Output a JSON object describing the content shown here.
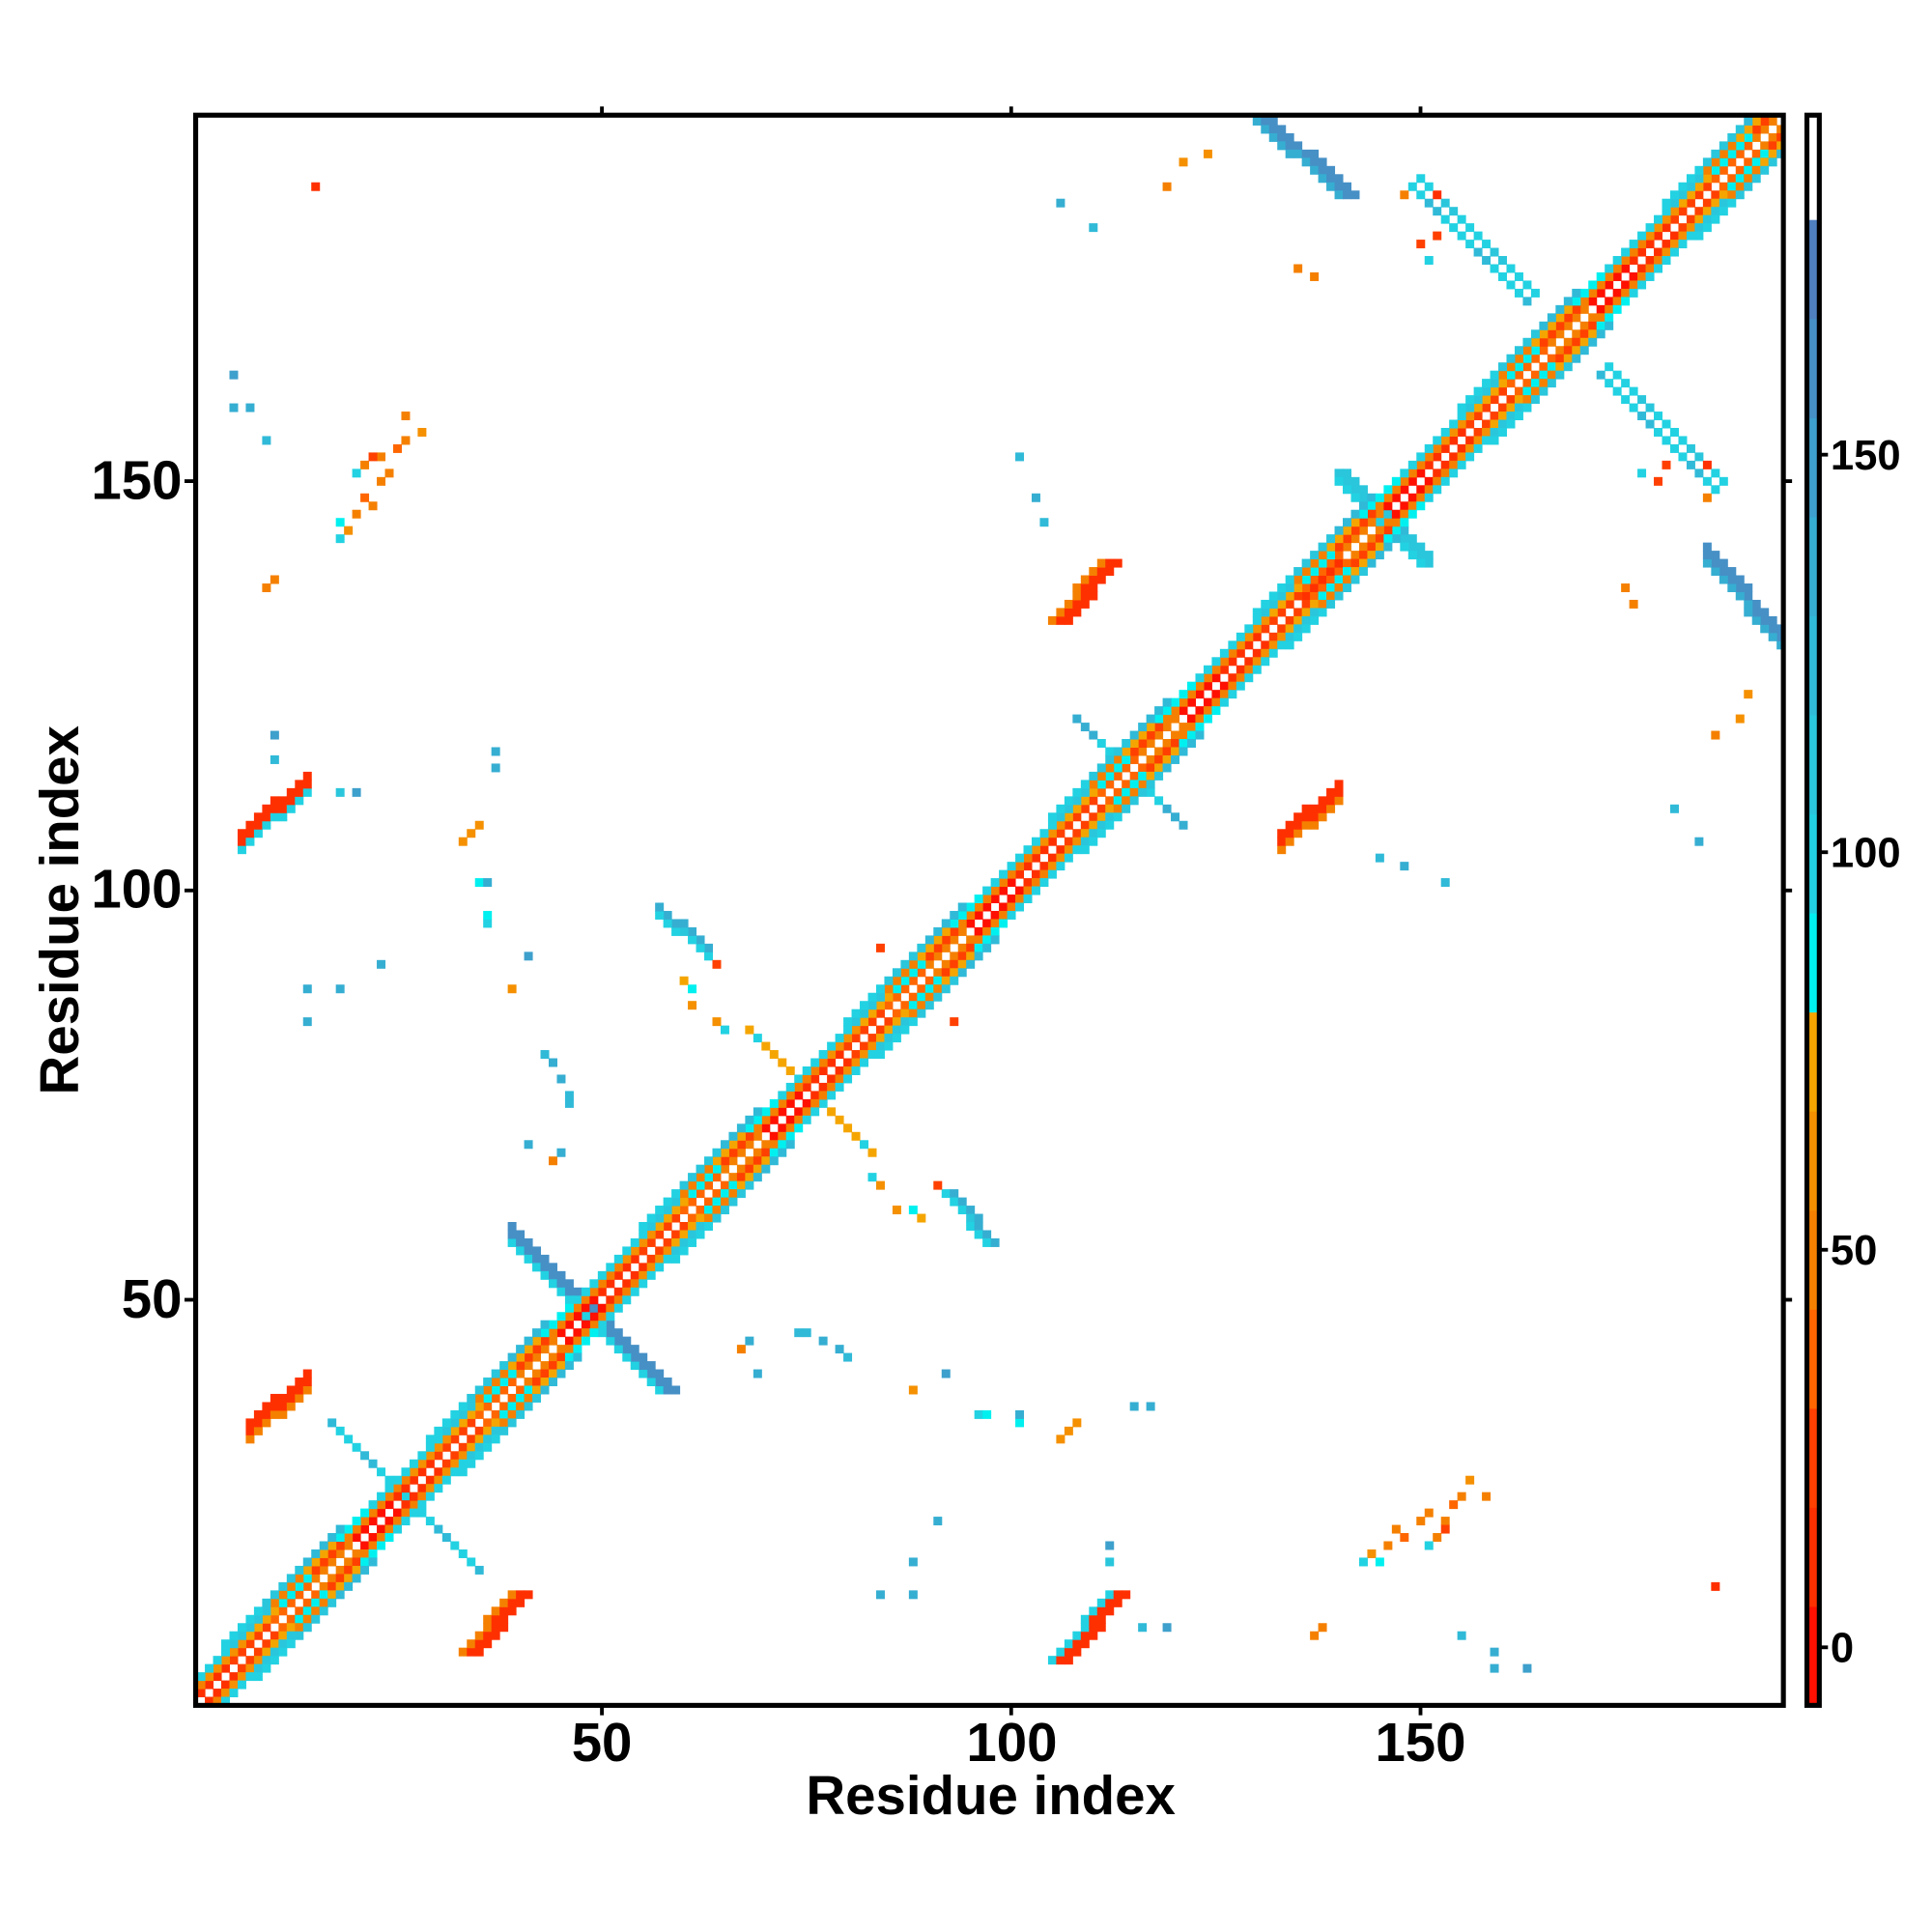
{
  "chart_data": {
    "type": "heatmap",
    "title": "",
    "xlabel": "Residue index",
    "ylabel": "Residue index",
    "n_residues": 194,
    "xlim": [
      1,
      194
    ],
    "ylim": [
      1,
      194
    ],
    "x_ticks": [
      "50",
      "100",
      "150"
    ],
    "y_ticks": [
      "50",
      "100",
      "150"
    ],
    "x_tick_values": [
      50,
      100,
      150
    ],
    "y_tick_values": [
      50,
      100,
      150
    ],
    "symmetric": true,
    "colorbar": {
      "range": [
        -7.3,
        192.7
      ],
      "ticks": [
        "0",
        "50",
        "100",
        "150"
      ],
      "tick_values": [
        0,
        50,
        100,
        150
      ],
      "band_width": 12.46,
      "colors": [
        "#ff1000",
        "#ff3000",
        "#ff4000",
        "#ff6600",
        "#f58000",
        "#f59000",
        "#f5a500",
        "#00f0f0",
        "#22d2e2",
        "#2ac6dc",
        "#30bad8",
        "#36aed2",
        "#3ea0cc",
        "#4690c6",
        "#4f80c0",
        "#ffffff"
      ]
    },
    "diagonal_bands": [
      {
        "offset": 1,
        "values": [
          5,
          15,
          20,
          35,
          45
        ]
      },
      {
        "offset": 2,
        "values": [
          30,
          45,
          55,
          60,
          75,
          90
        ]
      },
      {
        "offset": 3,
        "values": [
          50,
          70,
          85,
          95,
          100,
          115
        ]
      },
      {
        "offset": 4,
        "values": [
          95,
          110,
          125,
          null,
          null
        ]
      }
    ],
    "segments": [
      {
        "from": [
          33,
          7
        ],
        "to": [
          39,
          14
        ],
        "thickness": 3,
        "value": 15,
        "edge_value": 45
      },
      {
        "from": [
          105,
          6
        ],
        "to": [
          112,
          14
        ],
        "thickness": 3,
        "value": 10,
        "edge_value": 95
      },
      {
        "from": [
          39,
          57
        ],
        "to": [
          57,
          39
        ],
        "thickness": 3,
        "value": 160,
        "edge_value": 100
      },
      {
        "from": [
          92,
          63
        ],
        "to": [
          97,
          57
        ],
        "thickness": 2,
        "value": 130,
        "edge_value": 95
      },
      {
        "from": [
          130,
          194
        ],
        "to": [
          140,
          185
        ],
        "thickness": 3,
        "value": 165,
        "edge_value": 130
      },
      {
        "from": [
          105,
          133
        ],
        "to": [
          111,
          140
        ],
        "thickness": 3,
        "value": 10,
        "edge_value": 45
      },
      {
        "from": [
          136,
          136
        ],
        "to": [
          140,
          140
        ],
        "thickness": 2,
        "value": 5,
        "edge_value": 10
      },
      {
        "from": [
          149,
          186
        ],
        "to": [
          163,
          172
        ],
        "thickness": 1,
        "value": 100,
        "edge_value": 120
      },
      {
        "from": [
          173,
          164
        ],
        "to": [
          187,
          150
        ],
        "thickness": 1,
        "value": 95,
        "edge_value": 110
      },
      {
        "from": [
          140,
          151
        ],
        "to": [
          150,
          140
        ],
        "thickness": 2,
        "value": 110,
        "edge_value": 95
      },
      {
        "from": [
          108,
          121
        ],
        "to": [
          120,
          109
        ],
        "thickness": 1,
        "value": 100,
        "edge_value": 130
      },
      {
        "from": [
          68,
          83
        ],
        "to": [
          82,
          69
        ],
        "thickness": 1,
        "value": 70,
        "edge_value": 95
      },
      {
        "from": [
          17,
          35
        ],
        "to": [
          35,
          17
        ],
        "thickness": 1,
        "value": 95,
        "edge_value": 120
      }
    ],
    "points": [
      [
        144,
        19,
        60
      ],
      [
        146,
        20,
        55
      ],
      [
        147,
        22,
        45
      ],
      [
        148,
        21,
        40
      ],
      [
        150,
        23,
        45
      ],
      [
        151,
        24,
        45
      ],
      [
        152,
        21,
        50
      ],
      [
        153,
        23,
        50
      ],
      [
        154,
        25,
        40
      ],
      [
        155,
        26,
        45
      ],
      [
        156,
        28,
        65
      ],
      [
        158,
        26,
        45
      ],
      [
        151,
        20,
        95
      ],
      [
        145,
        18,
        90
      ],
      [
        153,
        22,
        20
      ],
      [
        143,
        18,
        95
      ],
      [
        84,
        14,
        130
      ],
      [
        88,
        14,
        130
      ],
      [
        91,
        23,
        130
      ],
      [
        88,
        18,
        140
      ],
      [
        112,
        20,
        150
      ],
      [
        112,
        18,
        110
      ],
      [
        116,
        10,
        125
      ],
      [
        119,
        10,
        150
      ],
      [
        155,
        9,
        115
      ],
      [
        159,
        7,
        135
      ],
      [
        159,
        5,
        130
      ],
      [
        163,
        5,
        150
      ],
      [
        137,
        9,
        50
      ],
      [
        138,
        10,
        50
      ],
      [
        115,
        37,
        140
      ],
      [
        117,
        37,
        140
      ],
      [
        106,
        33,
        60
      ],
      [
        107,
        34,
        60
      ],
      [
        108,
        35,
        60
      ],
      [
        96,
        36,
        95
      ],
      [
        97,
        36,
        85
      ],
      [
        67,
        44,
        55
      ],
      [
        75,
        46,
        120
      ],
      [
        77,
        45,
        130
      ],
      [
        79,
        44,
        140
      ],
      [
        80,
        43,
        120
      ],
      [
        83,
        65,
        95
      ],
      [
        84,
        64,
        60
      ],
      [
        86,
        61,
        60
      ],
      [
        88,
        61,
        90
      ],
      [
        89,
        60,
        70
      ],
      [
        91,
        64,
        20
      ],
      [
        95,
        60,
        110
      ],
      [
        93,
        84,
        20
      ],
      [
        41,
        69,
        130
      ],
      [
        45,
        68,
        140
      ],
      [
        46,
        74,
        120
      ],
      [
        39,
        88,
        60
      ],
      [
        35,
        101,
        80
      ],
      [
        36,
        101,
        140
      ],
      [
        41,
        92,
        150
      ],
      [
        135,
        176,
        55
      ],
      [
        155,
        9,
        125
      ],
      [
        150,
        179,
        30
      ],
      [
        152,
        180,
        20
      ],
      [
        151,
        177,
        95
      ],
      [
        186,
        15,
        10
      ],
      [
        185,
        152,
        10
      ],
      [
        185,
        148,
        50
      ],
      [
        175,
        137,
        55
      ],
      [
        190,
        124,
        60
      ],
      [
        189,
        121,
        60
      ],
      [
        186,
        119,
        50
      ],
      [
        181,
        110,
        125
      ],
      [
        184,
        106,
        130
      ],
      [
        145,
        104,
        120
      ],
      [
        148,
        103,
        130
      ],
      [
        153,
        101,
        125
      ]
    ]
  }
}
